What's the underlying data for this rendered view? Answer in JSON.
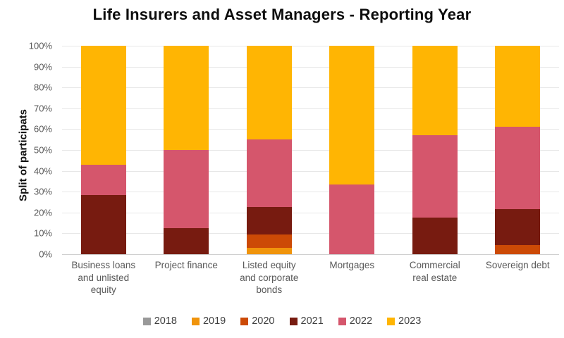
{
  "chart_data": {
    "type": "bar",
    "stacked": true,
    "orientation": "vertical",
    "title": "Life Insurers and Asset Managers - Reporting Year",
    "xlabel": "",
    "ylabel": "Split of participats",
    "ylim": [
      0,
      100
    ],
    "ytick_labels": [
      "0%",
      "10%",
      "20%",
      "30%",
      "40%",
      "50%",
      "60%",
      "70%",
      "80%",
      "90%",
      "100%"
    ],
    "grid": true,
    "legend_position": "bottom",
    "categories": [
      "Business loans and unlisted equity",
      "Project finance",
      "Listed equity and corporate bonds",
      "Mortgages",
      "Commercial real estate",
      "Sovereign debt"
    ],
    "category_labels": [
      "Business loans\nand unlisted\nequity",
      "Project finance",
      "Listed equity\nand corporate\nbonds",
      "Mortgages",
      "Commercial\nreal estate",
      "Sovereign debt"
    ],
    "units": "percent of participants",
    "series": [
      {
        "name": "2018",
        "color": "#999999",
        "values": [
          0,
          0,
          0,
          0,
          0,
          0
        ]
      },
      {
        "name": "2019",
        "color": "#F0940C",
        "values": [
          0,
          0,
          3,
          0,
          0,
          0
        ]
      },
      {
        "name": "2020",
        "color": "#CC4A06",
        "values": [
          0,
          0,
          6.5,
          0,
          0,
          4.5
        ]
      },
      {
        "name": "2021",
        "color": "#771B10",
        "values": [
          28.5,
          12.5,
          13,
          0,
          17.5,
          17
        ]
      },
      {
        "name": "2022",
        "color": "#D5566C",
        "values": [
          14.5,
          37.5,
          32.5,
          33.5,
          39.5,
          39.5
        ]
      },
      {
        "name": "2023",
        "color": "#FFB503",
        "values": [
          57,
          50,
          45,
          66.5,
          43,
          39
        ]
      }
    ],
    "colors": {
      "2018": "#999999",
      "2019": "#F0940C",
      "2020": "#CC4A06",
      "2021": "#771B10",
      "2022": "#D5566C",
      "2023": "#FFB503"
    }
  }
}
